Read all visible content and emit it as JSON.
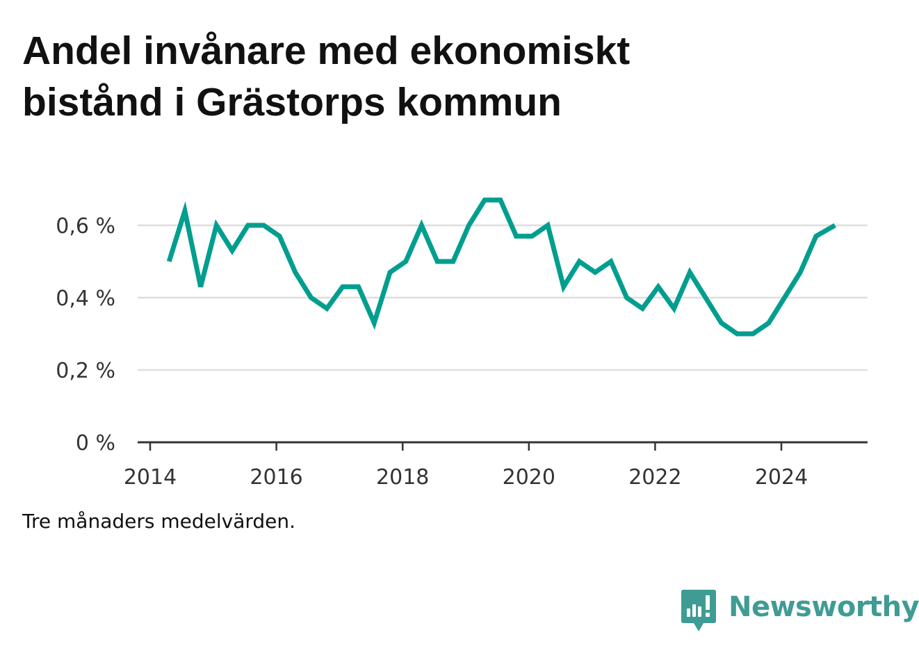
{
  "title": {
    "line1": "Andel invånare med ekonomiskt",
    "line2": "bistånd i Grästorps kommun"
  },
  "note": "Tre månaders medelvärden.",
  "brand": {
    "name": "Newsworthy",
    "icon": "newsworthy-logo-icon",
    "color": "#3f9c94"
  },
  "chart_data": {
    "type": "line",
    "title": "Andel invånare med ekonomiskt bistånd i Grästorps kommun",
    "xlabel": "",
    "ylabel": "",
    "xlim": [
      2013.7,
      2025.4
    ],
    "ylim": [
      0,
      0.7
    ],
    "x_ticks": [
      2014,
      2016,
      2018,
      2020,
      2022,
      2024
    ],
    "x_tick_labels": [
      "2014",
      "2016",
      "2018",
      "2020",
      "2022",
      "2024"
    ],
    "y_ticks": [
      0,
      0.2,
      0.4,
      0.6
    ],
    "y_tick_labels": [
      "0 %",
      "0,2 %",
      "0,4 %",
      "0,6 %"
    ],
    "grid": true,
    "legend": "none",
    "line_color": "#009e8f",
    "series": [
      {
        "x": [
          2014.3,
          2014.55,
          2014.8,
          2015.05,
          2015.3,
          2015.55,
          2015.8,
          2016.05,
          2016.3,
          2016.55,
          2016.8,
          2017.05,
          2017.3,
          2017.55,
          2017.8,
          2018.05,
          2018.3,
          2018.55,
          2018.8,
          2019.05,
          2019.3,
          2019.55,
          2019.8,
          2020.05,
          2020.3,
          2020.55,
          2020.8,
          2021.05,
          2021.3,
          2021.55,
          2021.8,
          2022.05,
          2022.3,
          2022.55,
          2022.8,
          2023.05,
          2023.3,
          2023.55,
          2023.8,
          2024.05,
          2024.3,
          2024.55,
          2024.85
        ],
        "values": [
          0.5,
          0.64,
          0.43,
          0.6,
          0.53,
          0.6,
          0.6,
          0.57,
          0.47,
          0.4,
          0.37,
          0.43,
          0.43,
          0.33,
          0.47,
          0.5,
          0.6,
          0.5,
          0.5,
          0.6,
          0.67,
          0.67,
          0.57,
          0.57,
          0.6,
          0.43,
          0.5,
          0.47,
          0.5,
          0.4,
          0.37,
          0.43,
          0.37,
          0.47,
          0.4,
          0.33,
          0.3,
          0.3,
          0.33,
          0.4,
          0.47,
          0.57,
          0.6
        ]
      }
    ]
  }
}
